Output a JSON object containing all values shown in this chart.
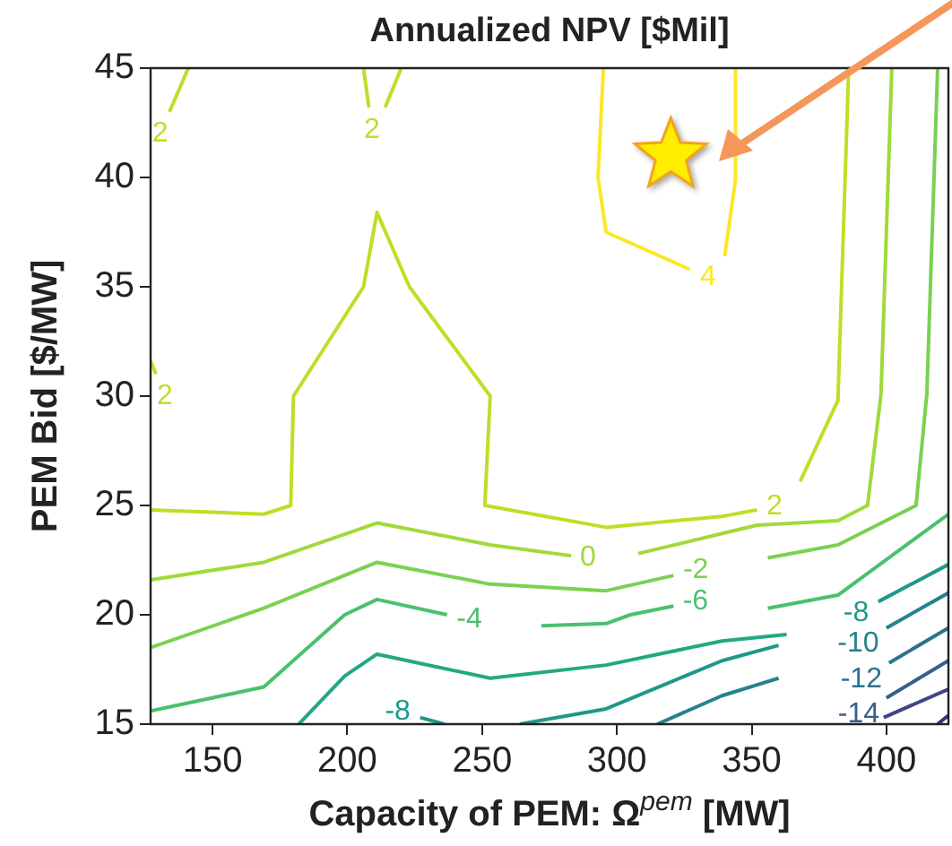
{
  "chart_data": {
    "type": "line",
    "title": "Annualized NPV [$Mil]",
    "xlabel": "Capacity of PEM: Ω$^{pem}$ [MW]",
    "ylabel": "PEM Bid [$/MW]",
    "xlim": [
      127,
      423
    ],
    "ylim": [
      15,
      45
    ],
    "xticks": [
      150,
      200,
      250,
      300,
      350,
      400
    ],
    "yticks": [
      15,
      20,
      25,
      30,
      35,
      40,
      45
    ],
    "grid": false,
    "legend": false,
    "marker": "none",
    "line_style": "solid",
    "series": [
      {
        "name": "2",
        "color": "#bddf26",
        "x": [
          141,
          134
        ],
        "values": [
          45,
          43
        ]
      },
      {
        "name": "2",
        "color": "#bddf26",
        "x": [
          206,
          208
        ],
        "values": [
          45,
          43.2
        ]
      },
      {
        "color": "#bddf26",
        "x": [
          214,
          220
        ],
        "values": [
          43.2,
          45
        ]
      },
      {
        "name": "2",
        "color": "#bddf26",
        "x": [
          127,
          129
        ],
        "values": [
          31.6,
          31
        ]
      },
      {
        "name": "2",
        "color": "#bddf26",
        "x": [
          127,
          169,
          179,
          180,
          206,
          211,
          223,
          253,
          251,
          296,
          339,
          352
        ],
        "values": [
          24.8,
          24.6,
          25,
          30,
          35,
          38.4,
          35,
          30,
          25,
          24,
          24.5,
          24.8
        ]
      },
      {
        "color": "#bddf26",
        "x": [
          368,
          382,
          386
        ],
        "values": [
          26.1,
          29.8,
          45
        ]
      },
      {
        "name": "4",
        "color": "#fde725",
        "x": [
          295,
          293,
          296,
          327
        ],
        "values": [
          45,
          40,
          37.5,
          35.8
        ]
      },
      {
        "color": "#fde725",
        "x": [
          340,
          344,
          344
        ],
        "values": [
          36.4,
          39.9,
          45
        ]
      },
      {
        "name": "0",
        "color": "#a0da39",
        "x": [
          127,
          169,
          211,
          253,
          283
        ],
        "values": [
          21.6,
          22.4,
          24.2,
          23.2,
          22.7
        ]
      },
      {
        "color": "#a0da39",
        "x": [
          308,
          352,
          382,
          393,
          398,
          402
        ],
        "values": [
          22.8,
          24.1,
          24.3,
          25,
          30.1,
          45
        ]
      },
      {
        "name": "-2",
        "color": "#7ad151",
        "x": [
          127,
          169,
          211,
          253,
          296,
          321
        ],
        "values": [
          18.5,
          20.3,
          22.4,
          21.4,
          21.1,
          21.8
        ]
      },
      {
        "color": "#7ad151",
        "x": [
          356,
          382,
          411,
          415,
          419
        ],
        "values": [
          22.6,
          23.2,
          25,
          30.1,
          45
        ]
      },
      {
        "name": "-4",
        "color": "#4ac16d",
        "x": [
          127,
          169,
          199,
          211,
          237
        ],
        "values": [
          15.6,
          16.7,
          20,
          20.7,
          20
        ]
      },
      {
        "name": "-6",
        "color": "#4ac16d",
        "x": [
          272,
          296,
          305,
          321
        ],
        "values": [
          19.5,
          19.6,
          20,
          20.4
        ]
      },
      {
        "color": "#4ac16d",
        "x": [
          356,
          382,
          423
        ],
        "values": [
          20.3,
          20.9,
          24.6
        ]
      },
      {
        "color": "#22a884",
        "x": [
          182,
          199,
          211,
          253,
          296,
          339,
          363
        ],
        "values": [
          15,
          17.2,
          18.2,
          17.1,
          17.7,
          18.8,
          19.1
        ]
      },
      {
        "name": "-8",
        "color": "#1f988b",
        "x": [
          236,
          227
        ],
        "values": [
          15,
          15.3
        ]
      },
      {
        "color": "#1f988b",
        "x": [
          264,
          296,
          339,
          360
        ],
        "values": [
          15,
          15.7,
          17.9,
          18.6
        ]
      },
      {
        "color": "#26828e",
        "x": [
          315,
          339,
          360
        ],
        "values": [
          15,
          16.3,
          17.1
        ]
      },
      {
        "name": "-8",
        "color": "#1f988b",
        "x": [
          423,
          397
        ],
        "values": [
          22.3,
          20.6
        ]
      },
      {
        "name": "-10",
        "color": "#26828e",
        "x": [
          423,
          400
        ],
        "values": [
          21,
          19.4
        ]
      },
      {
        "name": "-12",
        "color": "#2c728e",
        "x": [
          423,
          401
        ],
        "values": [
          19.4,
          17.8
        ]
      },
      {
        "name": "-14",
        "color": "#355f8d",
        "x": [
          423,
          400
        ],
        "values": [
          17.9,
          16.2
        ]
      },
      {
        "color": "#414487",
        "x": [
          399,
          423
        ],
        "values": [
          15.3,
          16.6
        ]
      },
      {
        "color": "#472d7b",
        "x": [
          419,
          423
        ],
        "values": [
          15,
          15.4
        ]
      },
      {
        "type": "scatter",
        "marker": "star",
        "color": "#ffee00",
        "x": [
          320
        ],
        "values": [
          41
        ]
      }
    ]
  }
}
